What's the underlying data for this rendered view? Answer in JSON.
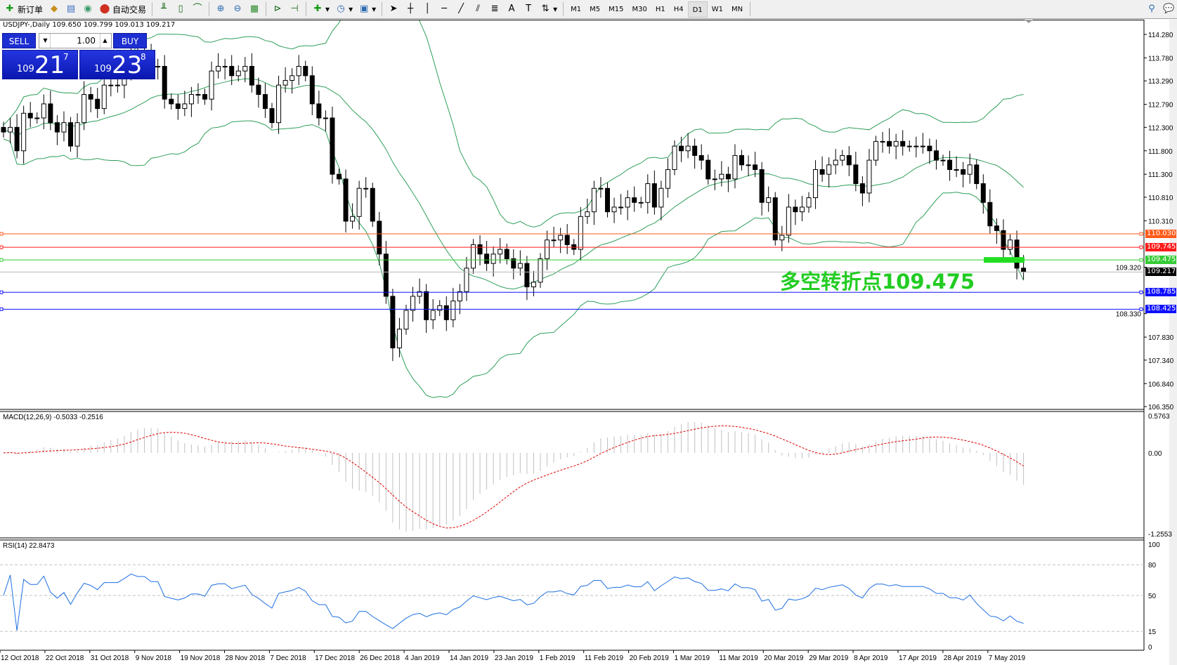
{
  "toolbar": {
    "new_order": "新订单",
    "auto_trading": "自动交易",
    "timeframes": [
      "M1",
      "M5",
      "M15",
      "M30",
      "H1",
      "H4",
      "D1",
      "W1",
      "MN"
    ],
    "active_timeframe": "D1"
  },
  "chart": {
    "legend": "USDJPY-,Daily  109.650 109.799 109.013 109.217",
    "annotation": "多空转折点109.475",
    "macd_label": "MACD(12,26,9) -0.5033 -0.2516",
    "rsi_label": "RSI(14) 22.8473"
  },
  "trade_panel": {
    "sell": "SELL",
    "buy": "BUY",
    "lot": "1.00",
    "bid": {
      "small": "109",
      "big": "21",
      "pip": "7"
    },
    "ask": {
      "small": "109",
      "big": "23",
      "pip": "8"
    }
  },
  "colors": {
    "bands": "#2e9e5a",
    "macd_signal": "#e00000",
    "rsi": "#1e6fe0",
    "bull": "#ffffff",
    "bear": "#000000"
  },
  "chart_data": {
    "type": "candlestick",
    "symbol": "USDJPY-",
    "period": "Daily",
    "ylim": [
      106.35,
      114.28
    ],
    "price_ticks": [
      "114.280",
      "113.780",
      "113.290",
      "112.790",
      "112.300",
      "111.800",
      "111.300",
      "110.810",
      "110.310",
      "109.320",
      "108.330",
      "107.830",
      "107.340",
      "106.840",
      "106.350"
    ],
    "closes": [
      112.2,
      112.3,
      111.8,
      112.6,
      112.5,
      112.5,
      112.8,
      112.4,
      112.2,
      112.4,
      111.9,
      112.4,
      113.0,
      112.9,
      112.7,
      113.2,
      113.2,
      113.2,
      113.5,
      113.9,
      113.8,
      113.8,
      113.6,
      113.6,
      112.9,
      112.8,
      112.7,
      112.8,
      113.0,
      113.0,
      112.9,
      113.5,
      113.6,
      113.6,
      113.4,
      113.5,
      113.6,
      113.2,
      113.0,
      112.7,
      112.4,
      113.2,
      113.3,
      113.4,
      113.6,
      113.4,
      112.8,
      112.5,
      112.5,
      111.3,
      111.2,
      110.3,
      110.4,
      111.0,
      111.0,
      110.3,
      109.6,
      108.7,
      107.6,
      108.0,
      108.4,
      108.7,
      108.8,
      108.2,
      108.4,
      108.5,
      108.2,
      108.6,
      108.8,
      109.3,
      109.8,
      109.6,
      109.4,
      109.6,
      109.7,
      109.5,
      109.3,
      109.4,
      108.9,
      109.0,
      109.5,
      109.9,
      109.9,
      110.0,
      109.8,
      109.7,
      110.4,
      110.5,
      111.0,
      111.0,
      110.5,
      110.6,
      110.6,
      110.8,
      110.7,
      110.7,
      111.1,
      110.6,
      111.0,
      111.4,
      111.9,
      111.8,
      111.9,
      111.7,
      111.6,
      111.2,
      111.2,
      111.3,
      111.2,
      111.7,
      111.5,
      111.5,
      111.4,
      110.7,
      110.8,
      109.9,
      110.0,
      110.6,
      110.5,
      110.6,
      110.8,
      111.4,
      111.3,
      111.5,
      111.6,
      111.7,
      111.5,
      111.1,
      110.9,
      111.6,
      112.0,
      112.0,
      111.9,
      112.0,
      111.9,
      111.9,
      111.9,
      111.9,
      111.8,
      111.6,
      111.6,
      111.4,
      111.4,
      111.3,
      111.5,
      111.1,
      110.7,
      110.2,
      110.1,
      109.7,
      109.9,
      109.3,
      109.217
    ],
    "hlines": [
      {
        "value": "110.030",
        "color": "#ff5a1a"
      },
      {
        "value": "109.745",
        "color": "#ff1a1a"
      },
      {
        "value": "109.475",
        "color": "#33cc33"
      },
      {
        "value": "109.217",
        "color": "#000000"
      },
      {
        "value": "108.785",
        "color": "#1010ff"
      },
      {
        "value": "108.425",
        "color": "#1010ff"
      }
    ],
    "macd": {
      "ylim": [
        -1.2553,
        0.5763
      ],
      "ticks": [
        "0.5763",
        "0.00",
        "-1.2553"
      ]
    },
    "rsi": {
      "ylim": [
        0,
        100
      ],
      "ticks": [
        "100",
        "80",
        "50",
        "15",
        "0"
      ],
      "levels": [
        80,
        50,
        15
      ]
    },
    "dates": [
      "12 Oct 2018",
      "22 Oct 2018",
      "31 Oct 2018",
      "9 Nov 2018",
      "19 Nov 2018",
      "28 Nov 2018",
      "7 Dec 2018",
      "17 Dec 2018",
      "26 Dec 2018",
      "4 Jan 2019",
      "14 Jan 2019",
      "23 Jan 2019",
      "1 Feb 2019",
      "11 Feb 2019",
      "20 Feb 2019",
      "1 Mar 2019",
      "11 Mar 2019",
      "20 Mar 2019",
      "29 Mar 2019",
      "8 Apr 2019",
      "17 Apr 2019",
      "28 Apr 2019",
      "7 May 2019"
    ]
  }
}
